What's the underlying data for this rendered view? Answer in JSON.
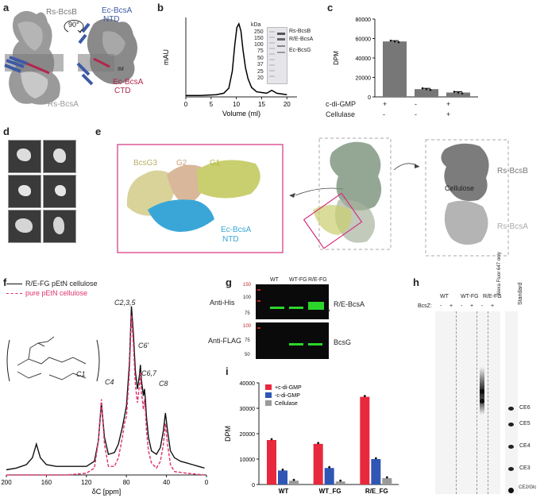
{
  "panels": {
    "a": {
      "letter": "a",
      "labels": {
        "rs_bcsb": "Rs-BcsB",
        "ec_ntd": "Ec-BcsA\nNTD",
        "ec_ntd_1": "Ec-BcsA",
        "ec_ntd_2": "NTD",
        "rotation": "90°",
        "im": "IM",
        "ec_ctd_1": "Ec-BcsA",
        "ec_ctd_2": "CTD",
        "rs_bcsa": "Rs-BcsA"
      },
      "colors": {
        "structure": "#8f8f8f",
        "ntd": "#3d5aa6",
        "ctd": "#b3264e"
      }
    },
    "b": {
      "letter": "b",
      "gel_labels": {
        "kda": "kDa",
        "l250": "250",
        "l150": "150",
        "l100": "100",
        "l75": "75",
        "l50": "50",
        "l37": "37",
        "l25": "25",
        "l20": "20",
        "rs_bcsb": "Rs-BcsB",
        "re_bcsa": "R/E-BcsA",
        "ec_bcsg": "Ec-BcsG"
      }
    },
    "c": {
      "letter": "c",
      "row1": "c-di-GMP",
      "row2": "Cellulase",
      "r1": [
        "+",
        "-",
        "+"
      ],
      "r2": [
        "-",
        "-",
        "+"
      ]
    },
    "d": {
      "letter": "d"
    },
    "e": {
      "letter": "e",
      "labels": {
        "g3": "BcsG3",
        "g2": "G2",
        "g1": "G1",
        "ntd_1": "Ec-BcsA",
        "ntd_2": "NTD",
        "cellulose": "Cellulose",
        "rs_bcsb": "Rs-BcsB",
        "rs_bcsa": "Rs-BcsA"
      },
      "colors": {
        "g3": "#d9d39a",
        "g2": "#d9b79a",
        "g1": "#c9cf6e",
        "ntd": "#3aa6d8",
        "frame": "#d4317f"
      }
    },
    "f": {
      "letter": "f",
      "legend1": "R/E-FG pEtN cellulose",
      "legend2": "pure pEtN cellulose",
      "peaks": {
        "c1": "C1",
        "c235": "C2,3,5",
        "c4": "C4",
        "c6p": "C6'",
        "c67": "C6,7",
        "c8": "C8"
      }
    },
    "g": {
      "letter": "g",
      "cols": [
        "WT",
        "WT-FG",
        "R/E-FG"
      ],
      "anti_his": "Anti-His",
      "anti_flag": "Anti-FLAG",
      "re_bcsa": "R/E-BcsA",
      "bcsg": "BcsG",
      "star": "*",
      "his_markers": [
        "100",
        "75"
      ],
      "his_top": "150",
      "flag_markers": [
        "100",
        "75",
        "50"
      ]
    },
    "h": {
      "letter": "h",
      "cols": [
        "WT",
        "WT-FG",
        "R/E-FG",
        "Alexa Fluor 647 only",
        "Standard"
      ],
      "bcsz": "BcsZ:",
      "pm": [
        "-",
        "+",
        "-",
        "+",
        "-",
        "+"
      ],
      "std": [
        "CE6",
        "CE5",
        "CE4",
        "CE3",
        "CE2/Glc"
      ]
    },
    "i": {
      "letter": "i",
      "legend": [
        "+c-di-GMP",
        "-c-di-GMP",
        "Cellulase"
      ],
      "groups": [
        "WT",
        "WT_FG",
        "R/E_FG"
      ]
    }
  },
  "chart_data": [
    {
      "id": "b",
      "type": "line",
      "xlabel": "Volume (ml)",
      "ylabel": "mAU",
      "xlim": [
        0,
        22
      ],
      "xticks": [
        0,
        5,
        10,
        15,
        20
      ],
      "x": [
        0,
        3,
        6,
        7.5,
        8.5,
        9.2,
        9.7,
        10.1,
        10.5,
        10.9,
        11.3,
        11.8,
        12.3,
        13,
        14,
        15,
        16,
        17,
        18,
        20
      ],
      "y": [
        0.02,
        0.02,
        0.03,
        0.05,
        0.12,
        0.35,
        0.72,
        0.95,
        1.0,
        0.9,
        0.65,
        0.4,
        0.25,
        0.13,
        0.07,
        0.06,
        0.05,
        0.09,
        0.05,
        0.03
      ]
    },
    {
      "id": "c",
      "type": "bar",
      "ylabel": "DPM",
      "ylim": [
        0,
        80000
      ],
      "yticks": [
        0,
        20000,
        40000,
        60000,
        80000
      ],
      "ytick_labels": [
        "0",
        "20000",
        "40000",
        "60000",
        "80000"
      ],
      "categories": [
        "1",
        "2",
        "3"
      ],
      "values": [
        57000,
        8000,
        4500
      ],
      "bar_color": "#777777"
    },
    {
      "id": "f",
      "type": "line",
      "xlabel": "δC [ppm]",
      "xlim": [
        200,
        0
      ],
      "xticks": [
        200,
        160,
        120,
        80,
        40,
        0
      ],
      "series": [
        {
          "name": "R/E-FG pEtN cellulose",
          "color": "#111111",
          "x": [
            200,
            190,
            180,
            174,
            170,
            166,
            160,
            150,
            140,
            130,
            120,
            112,
            108,
            105,
            102,
            98,
            92,
            88,
            84,
            82,
            80,
            77,
            75,
            73,
            71,
            69,
            67,
            66,
            65,
            63,
            62,
            61,
            60,
            58,
            55,
            50,
            46,
            43,
            41,
            39,
            36,
            32,
            26,
            20,
            14,
            8,
            2
          ],
          "y": [
            0.03,
            0.04,
            0.06,
            0.1,
            0.18,
            0.1,
            0.06,
            0.05,
            0.05,
            0.05,
            0.05,
            0.08,
            0.2,
            0.42,
            0.22,
            0.12,
            0.13,
            0.18,
            0.28,
            0.34,
            0.4,
            0.65,
            0.98,
            0.82,
            0.6,
            0.5,
            0.58,
            0.64,
            0.55,
            0.46,
            0.5,
            0.44,
            0.34,
            0.22,
            0.14,
            0.12,
            0.16,
            0.26,
            0.36,
            0.26,
            0.14,
            0.1,
            0.08,
            0.07,
            0.06,
            0.05,
            0.04
          ]
        },
        {
          "name": "pure pEtN cellulose",
          "color": "#e0306f",
          "x": [
            200,
            180,
            160,
            140,
            120,
            112,
            108,
            105,
            102,
            98,
            92,
            88,
            84,
            82,
            80,
            77,
            75,
            73,
            71,
            69,
            67,
            66,
            65,
            63,
            62,
            61,
            60,
            58,
            55,
            50,
            46,
            43,
            41,
            39,
            36,
            32,
            20,
            2
          ],
          "y": [
            0.0,
            0.0,
            0.0,
            0.0,
            0.01,
            0.04,
            0.2,
            0.44,
            0.18,
            0.05,
            0.05,
            0.1,
            0.22,
            0.3,
            0.34,
            0.6,
            0.93,
            0.76,
            0.52,
            0.42,
            0.52,
            0.6,
            0.48,
            0.38,
            0.44,
            0.38,
            0.26,
            0.14,
            0.07,
            0.04,
            0.08,
            0.18,
            0.3,
            0.18,
            0.06,
            0.02,
            0.01,
            0.0
          ]
        }
      ]
    },
    {
      "id": "i",
      "type": "bar",
      "ylabel": "DPM",
      "ylim": [
        0,
        40000
      ],
      "yticks": [
        0,
        10000,
        20000,
        30000,
        40000
      ],
      "ytick_labels": [
        "0",
        "10000",
        "20000",
        "30000",
        "40000"
      ],
      "categories": [
        "WT",
        "WT_FG",
        "R/E_FG"
      ],
      "series": [
        {
          "name": "+c-di-GMP",
          "color": "#e8283c",
          "values": [
            17500,
            16000,
            34500
          ]
        },
        {
          "name": "-c-di-GMP",
          "color": "#2f56b5",
          "values": [
            5500,
            6500,
            10000
          ]
        },
        {
          "name": "Cellulase",
          "color": "#9a9a9a",
          "values": [
            1500,
            1200,
            2500
          ]
        }
      ]
    }
  ]
}
